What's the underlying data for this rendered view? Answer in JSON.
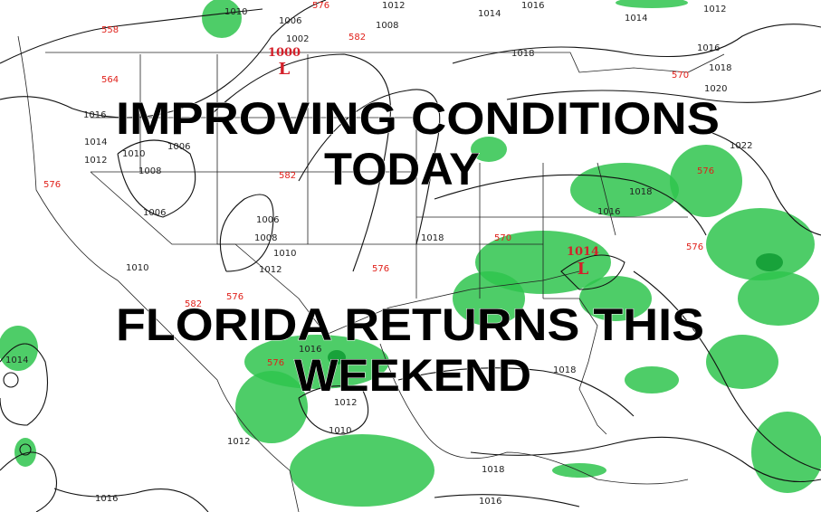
{
  "headline": {
    "line1": "IMPROVING CONDITIONS",
    "line2": "TODAY",
    "line3": "FLORIDA RETURNS THIS",
    "line4": "WEEKEND"
  },
  "pressure_centers": [
    {
      "value": "1000",
      "symbol": "L"
    },
    {
      "value": "1014",
      "symbol": "L"
    }
  ],
  "isobar_labels": [
    "1010",
    "1006",
    "1002",
    "1008",
    "1012",
    "1014",
    "1016",
    "1018",
    "1014",
    "1012",
    "1016",
    "1018",
    "1020",
    "1022",
    "1016",
    "1014",
    "1012",
    "1010",
    "1008",
    "1006",
    "1006",
    "1006",
    "1008",
    "1010",
    "1012",
    "1010",
    "1018",
    "1018",
    "1016",
    "1016",
    "1012",
    "1010",
    "1012",
    "1018",
    "1018",
    "1016",
    "1016",
    "1014"
  ],
  "thickness_labels": [
    "558",
    "564",
    "576",
    "576",
    "582",
    "570",
    "582",
    "576",
    "570",
    "576",
    "582",
    "576",
    "576",
    "576"
  ],
  "colors": {
    "isobar": "#111111",
    "thickness": "#e52222",
    "precip": "#2fc44e",
    "low": "#d4202a",
    "headline": "#000000"
  }
}
